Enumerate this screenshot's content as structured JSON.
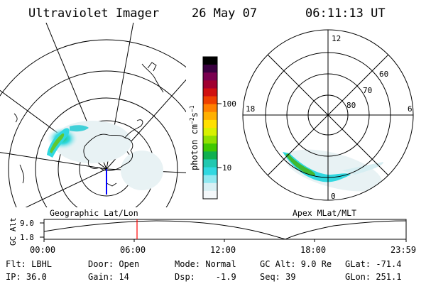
{
  "header": {
    "instrument": "Ultraviolet Imager",
    "date": "26 May 07",
    "time": "06:11:13 UT"
  },
  "left_panel": {
    "caption": "Geographic Lat/Lon"
  },
  "color_bar": {
    "unit_label": "photon cm",
    "unit_sup1": "−2",
    "unit_s": "s",
    "unit_sup2": "−1",
    "ticks": [
      "100",
      "10"
    ],
    "colors": [
      "#000000",
      "#3a0040",
      "#7a0050",
      "#a00030",
      "#d01010",
      "#ee4000",
      "#ff8000",
      "#ffb000",
      "#ffe000",
      "#d8f000",
      "#90e000",
      "#40c800",
      "#10b050",
      "#20c8b0",
      "#30d8e0",
      "#90e8f0",
      "#d8f0f4",
      "#f4f8fa"
    ]
  },
  "right_panel": {
    "caption": "Apex MLat/MLT",
    "mlt_labels": [
      "12",
      "18",
      "6",
      "0"
    ],
    "lat_labels": [
      "60",
      "70",
      "80"
    ]
  },
  "altitude_plot": {
    "ylabel": "GC Alt",
    "y_ticks": [
      "9.0",
      "1.8"
    ],
    "x_ticks": [
      "00:00",
      "06:00",
      "12:00",
      "18:00",
      "23:59"
    ],
    "current_time_marker": "06:11",
    "marker_color": "#ff0000"
  },
  "info": {
    "col1": [
      "Flt: LBHL",
      "IP: 36.0"
    ],
    "col2": [
      "Door: Open",
      "Gain: 14"
    ],
    "col3": [
      "Mode: Normal",
      "Dsp:    -1.9"
    ],
    "col4": [
      "GC Alt: 9.0 Re",
      "Seq: 39"
    ],
    "col5": [
      "GLat: -71.4",
      "GLon: 251.1"
    ]
  }
}
